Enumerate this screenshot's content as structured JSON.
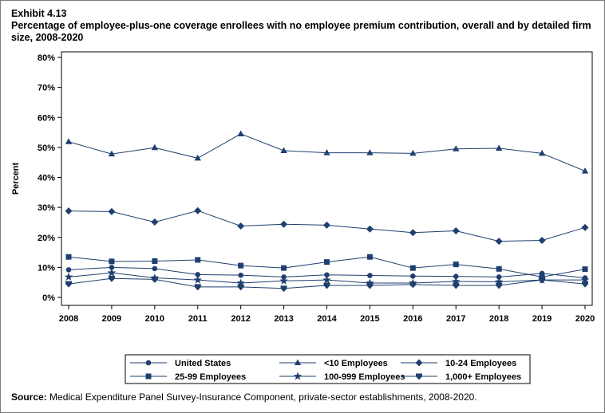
{
  "header": {
    "exhibit": "Exhibit 4.13",
    "title": "Percentage of employee-plus-one coverage enrollees with no employee premium contribution, overall and by detailed firm size, 2008-2020"
  },
  "footer": {
    "source_label": "Source:",
    "source_text": "Medical Expenditure Panel Survey-Insurance Component, private-sector establishments, 2008-2020."
  },
  "colors": {
    "series": "#1f3f6e",
    "axis": "#000000",
    "frame": "#7a7a7a"
  },
  "chart_data": {
    "type": "line",
    "title": "",
    "xlabel": "",
    "ylabel": "Percent",
    "x": [
      "2008",
      "2009",
      "2010",
      "2011",
      "2012",
      "2013",
      "2014",
      "2015",
      "2016",
      "2017",
      "2018",
      "2019",
      "2020"
    ],
    "ylim": [
      0,
      80
    ],
    "yticks": [
      0,
      10,
      20,
      30,
      40,
      50,
      60,
      70,
      80
    ],
    "ytick_labels": [
      "0%",
      "10%",
      "20%",
      "30%",
      "40%",
      "50%",
      "60%",
      "70%",
      "80%"
    ],
    "grid": false,
    "legend_position": "bottom",
    "series": [
      {
        "name": "United States",
        "marker": "circle",
        "values": [
          9.2,
          10.0,
          9.6,
          7.6,
          7.4,
          6.8,
          7.5,
          7.3,
          7.1,
          7.0,
          6.8,
          8.0,
          6.5
        ]
      },
      {
        "name": "<10 Employees",
        "marker": "triangle",
        "values": [
          51.9,
          47.8,
          49.9,
          46.4,
          54.5,
          48.9,
          48.2,
          48.2,
          48.0,
          49.5,
          49.7,
          48.0,
          42.1
        ]
      },
      {
        "name": "10-24 Employees",
        "marker": "diamond",
        "values": [
          28.8,
          28.6,
          25.1,
          28.9,
          23.8,
          24.4,
          24.1,
          22.8,
          21.6,
          22.2,
          18.7,
          19.0,
          23.3
        ]
      },
      {
        "name": "25-99 Employees",
        "marker": "square",
        "values": [
          13.5,
          12.0,
          12.1,
          12.5,
          10.6,
          9.8,
          11.8,
          13.5,
          9.8,
          11.0,
          9.5,
          6.8,
          9.4
        ]
      },
      {
        "name": "100-999 Employees",
        "marker": "star",
        "values": [
          6.8,
          8.2,
          6.5,
          5.8,
          4.8,
          5.5,
          5.8,
          4.8,
          4.8,
          5.3,
          5.2,
          5.8,
          5.8
        ]
      },
      {
        "name": "1,000+ Employees",
        "marker": "shield",
        "values": [
          4.5,
          6.3,
          6.0,
          3.5,
          3.5,
          3.0,
          4.0,
          4.0,
          4.3,
          4.0,
          4.0,
          5.8,
          4.5
        ]
      }
    ]
  }
}
